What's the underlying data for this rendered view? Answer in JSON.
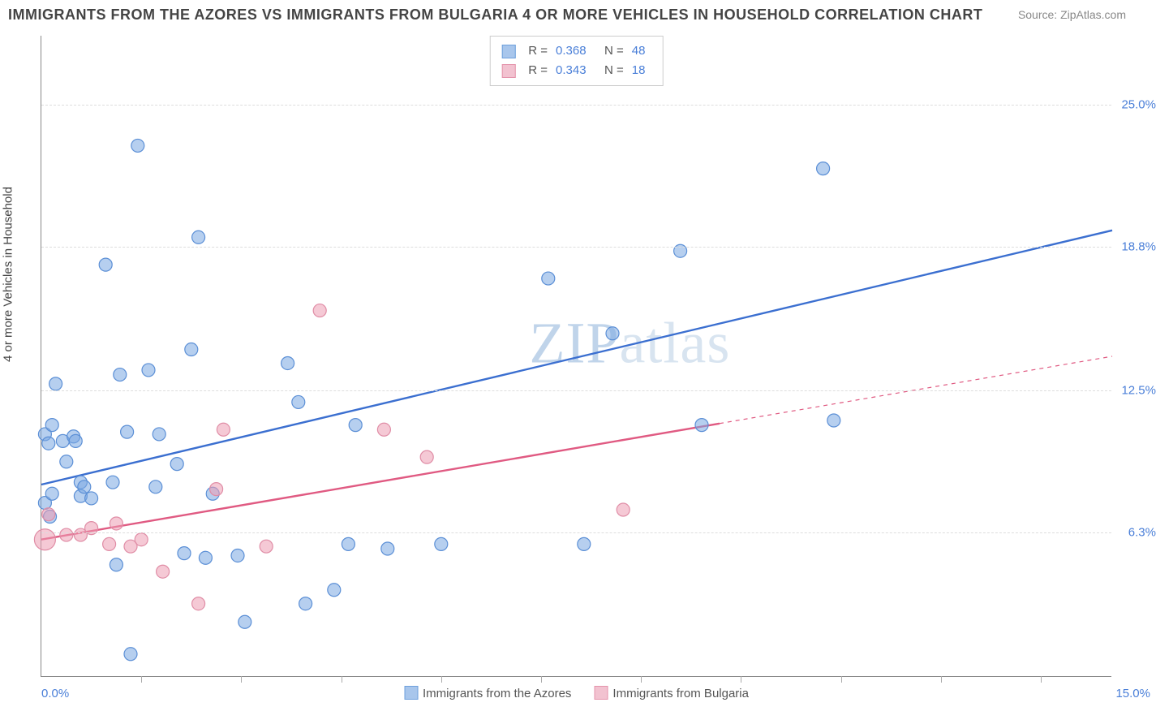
{
  "title": "IMMIGRANTS FROM THE AZORES VS IMMIGRANTS FROM BULGARIA 4 OR MORE VEHICLES IN HOUSEHOLD CORRELATION CHART",
  "source": "Source: ZipAtlas.com",
  "ylabel": "4 or more Vehicles in Household",
  "watermark": "ZIPatlas",
  "chart": {
    "type": "scatter",
    "xlim": [
      0.0,
      15.0
    ],
    "ylim": [
      0.0,
      28.0
    ],
    "x_axis_labels": {
      "left": "0.0%",
      "right": "15.0%"
    },
    "y_ticks": [
      {
        "value": 6.3,
        "label": "6.3%"
      },
      {
        "value": 12.5,
        "label": "12.5%"
      },
      {
        "value": 18.8,
        "label": "18.8%"
      },
      {
        "value": 25.0,
        "label": "25.0%"
      }
    ],
    "x_tick_positions": [
      1.4,
      2.8,
      4.2,
      5.6,
      7.0,
      8.4,
      9.8,
      11.2,
      12.6,
      14.0
    ],
    "background_color": "#ffffff",
    "grid_color": "#dddddd",
    "axis_color": "#888888",
    "marker_radius": 8,
    "marker_radius_large": 13,
    "marker_stroke_width": 1.2,
    "trend_line_width": 2.4,
    "label_color": "#4a7fd8",
    "series": [
      {
        "name": "Immigrants from the Azores",
        "color_fill": "rgba(122,168,226,0.55)",
        "color_stroke": "#5b8fd6",
        "swatch_fill": "#a8c6ec",
        "swatch_border": "#6d9fdc",
        "trend_color": "#3b6fd0",
        "trend": {
          "x1": 0.0,
          "y1": 8.4,
          "x2": 15.0,
          "y2": 19.5,
          "dash_from_x": null
        },
        "R": "0.368",
        "N": "48",
        "points": [
          {
            "x": 0.05,
            "y": 7.6
          },
          {
            "x": 0.05,
            "y": 10.6
          },
          {
            "x": 0.1,
            "y": 10.2
          },
          {
            "x": 0.15,
            "y": 8.0
          },
          {
            "x": 0.12,
            "y": 7.0
          },
          {
            "x": 0.2,
            "y": 12.8
          },
          {
            "x": 0.15,
            "y": 11.0
          },
          {
            "x": 0.35,
            "y": 9.4
          },
          {
            "x": 0.3,
            "y": 10.3
          },
          {
            "x": 0.45,
            "y": 10.5
          },
          {
            "x": 0.48,
            "y": 10.3
          },
          {
            "x": 0.55,
            "y": 8.5
          },
          {
            "x": 0.55,
            "y": 7.9
          },
          {
            "x": 0.6,
            "y": 8.3
          },
          {
            "x": 0.7,
            "y": 7.8
          },
          {
            "x": 0.9,
            "y": 18.0
          },
          {
            "x": 1.0,
            "y": 8.5
          },
          {
            "x": 1.05,
            "y": 4.9
          },
          {
            "x": 1.1,
            "y": 13.2
          },
          {
            "x": 1.2,
            "y": 10.7
          },
          {
            "x": 1.25,
            "y": 1.0
          },
          {
            "x": 1.35,
            "y": 23.2
          },
          {
            "x": 1.5,
            "y": 13.4
          },
          {
            "x": 1.6,
            "y": 8.3
          },
          {
            "x": 1.65,
            "y": 10.6
          },
          {
            "x": 1.9,
            "y": 9.3
          },
          {
            "x": 2.0,
            "y": 5.4
          },
          {
            "x": 2.1,
            "y": 14.3
          },
          {
            "x": 2.2,
            "y": 19.2
          },
          {
            "x": 2.3,
            "y": 5.2
          },
          {
            "x": 2.4,
            "y": 8.0
          },
          {
            "x": 2.75,
            "y": 5.3
          },
          {
            "x": 2.85,
            "y": 2.4
          },
          {
            "x": 3.45,
            "y": 13.7
          },
          {
            "x": 3.6,
            "y": 12.0
          },
          {
            "x": 3.7,
            "y": 3.2
          },
          {
            "x": 4.1,
            "y": 3.8
          },
          {
            "x": 4.3,
            "y": 5.8
          },
          {
            "x": 4.4,
            "y": 11.0
          },
          {
            "x": 4.85,
            "y": 5.6
          },
          {
            "x": 5.6,
            "y": 5.8
          },
          {
            "x": 7.1,
            "y": 17.4
          },
          {
            "x": 7.6,
            "y": 5.8
          },
          {
            "x": 8.0,
            "y": 15.0
          },
          {
            "x": 8.95,
            "y": 18.6
          },
          {
            "x": 9.25,
            "y": 11.0
          },
          {
            "x": 10.95,
            "y": 22.2
          },
          {
            "x": 11.1,
            "y": 11.2
          }
        ]
      },
      {
        "name": "Immigrants from Bulgaria",
        "color_fill": "rgba(236,156,178,0.55)",
        "color_stroke": "#e08da6",
        "swatch_fill": "#f2c2d0",
        "swatch_border": "#e493ab",
        "trend_color": "#e05a82",
        "trend": {
          "x1": 0.0,
          "y1": 6.0,
          "x2": 15.0,
          "y2": 14.0,
          "dash_from_x": 9.5
        },
        "R": "0.343",
        "N": "18",
        "points": [
          {
            "x": 0.05,
            "y": 6.0,
            "large": true
          },
          {
            "x": 0.1,
            "y": 7.1
          },
          {
            "x": 0.35,
            "y": 6.2
          },
          {
            "x": 0.55,
            "y": 6.2
          },
          {
            "x": 0.7,
            "y": 6.5
          },
          {
            "x": 0.95,
            "y": 5.8
          },
          {
            "x": 1.05,
            "y": 6.7
          },
          {
            "x": 1.25,
            "y": 5.7
          },
          {
            "x": 1.4,
            "y": 6.0
          },
          {
            "x": 1.7,
            "y": 4.6
          },
          {
            "x": 2.2,
            "y": 3.2
          },
          {
            "x": 2.45,
            "y": 8.2
          },
          {
            "x": 2.55,
            "y": 10.8
          },
          {
            "x": 3.15,
            "y": 5.7
          },
          {
            "x": 3.9,
            "y": 16.0
          },
          {
            "x": 4.8,
            "y": 10.8
          },
          {
            "x": 5.4,
            "y": 9.6
          },
          {
            "x": 8.15,
            "y": 7.3
          }
        ]
      }
    ],
    "top_legend_rows": [
      {
        "series_index": 0,
        "R_label": "R =",
        "N_label": "N ="
      },
      {
        "series_index": 1,
        "R_label": "R =",
        "N_label": "N ="
      }
    ]
  }
}
